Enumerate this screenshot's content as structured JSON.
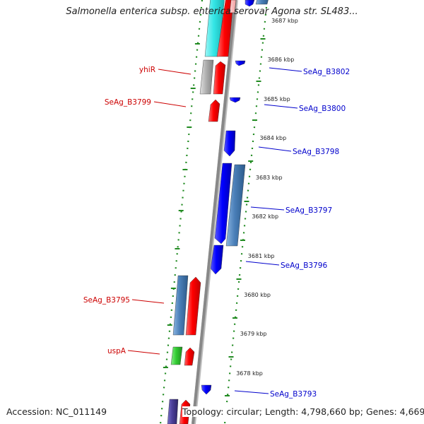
{
  "title": "Salmonella enterica subsp. enterica serovar Agona str. SL483...",
  "footer": {
    "accession_label": "Accession:",
    "accession": "NC_011149",
    "topology_label": "Topology:",
    "topology": "circular",
    "length_label": "Length:",
    "length": "4,798,660 bp",
    "genes_label": "Genes:",
    "genes": "4,669"
  },
  "ticks": [
    "3687 kbp",
    "3686 kbp",
    "3685 kbp",
    "3684 kbp",
    "3683 kbp",
    "3682 kbp",
    "3681 kbp",
    "3680 kbp",
    "3679 kbp",
    "3678 kbp"
  ],
  "gene_labels": {
    "forward_left": [
      {
        "name": "yhiR",
        "color": "#cc0000"
      },
      {
        "name": "SeAg_B3799",
        "color": "#cc0000"
      },
      {
        "name": "SeAg_B3795",
        "color": "#cc0000"
      },
      {
        "name": "uspA",
        "color": "#cc0000"
      }
    ],
    "reverse_right": [
      {
        "name": "SeAg_B3802",
        "color": "#0000cc"
      },
      {
        "name": "SeAg_B3800",
        "color": "#0000cc"
      },
      {
        "name": "SeAg_B3798",
        "color": "#0000cc"
      },
      {
        "name": "SeAg_B3797",
        "color": "#0000cc"
      },
      {
        "name": "SeAg_B3796",
        "color": "#0000cc"
      },
      {
        "name": "SeAg_B3793",
        "color": "#0000cc"
      }
    ]
  },
  "colors": {
    "forward_cds": "#ff0000",
    "reverse_cds": "#0000ff",
    "steel_blue_feature": "#4a7fb8",
    "cyan_feature": "#33e6e6",
    "gray_feature": "#b0b0b0",
    "green_feature": "#33cc33",
    "purple_feature": "#4b3f99",
    "backbone": "#888888",
    "dotted_ring": "#228b22"
  }
}
